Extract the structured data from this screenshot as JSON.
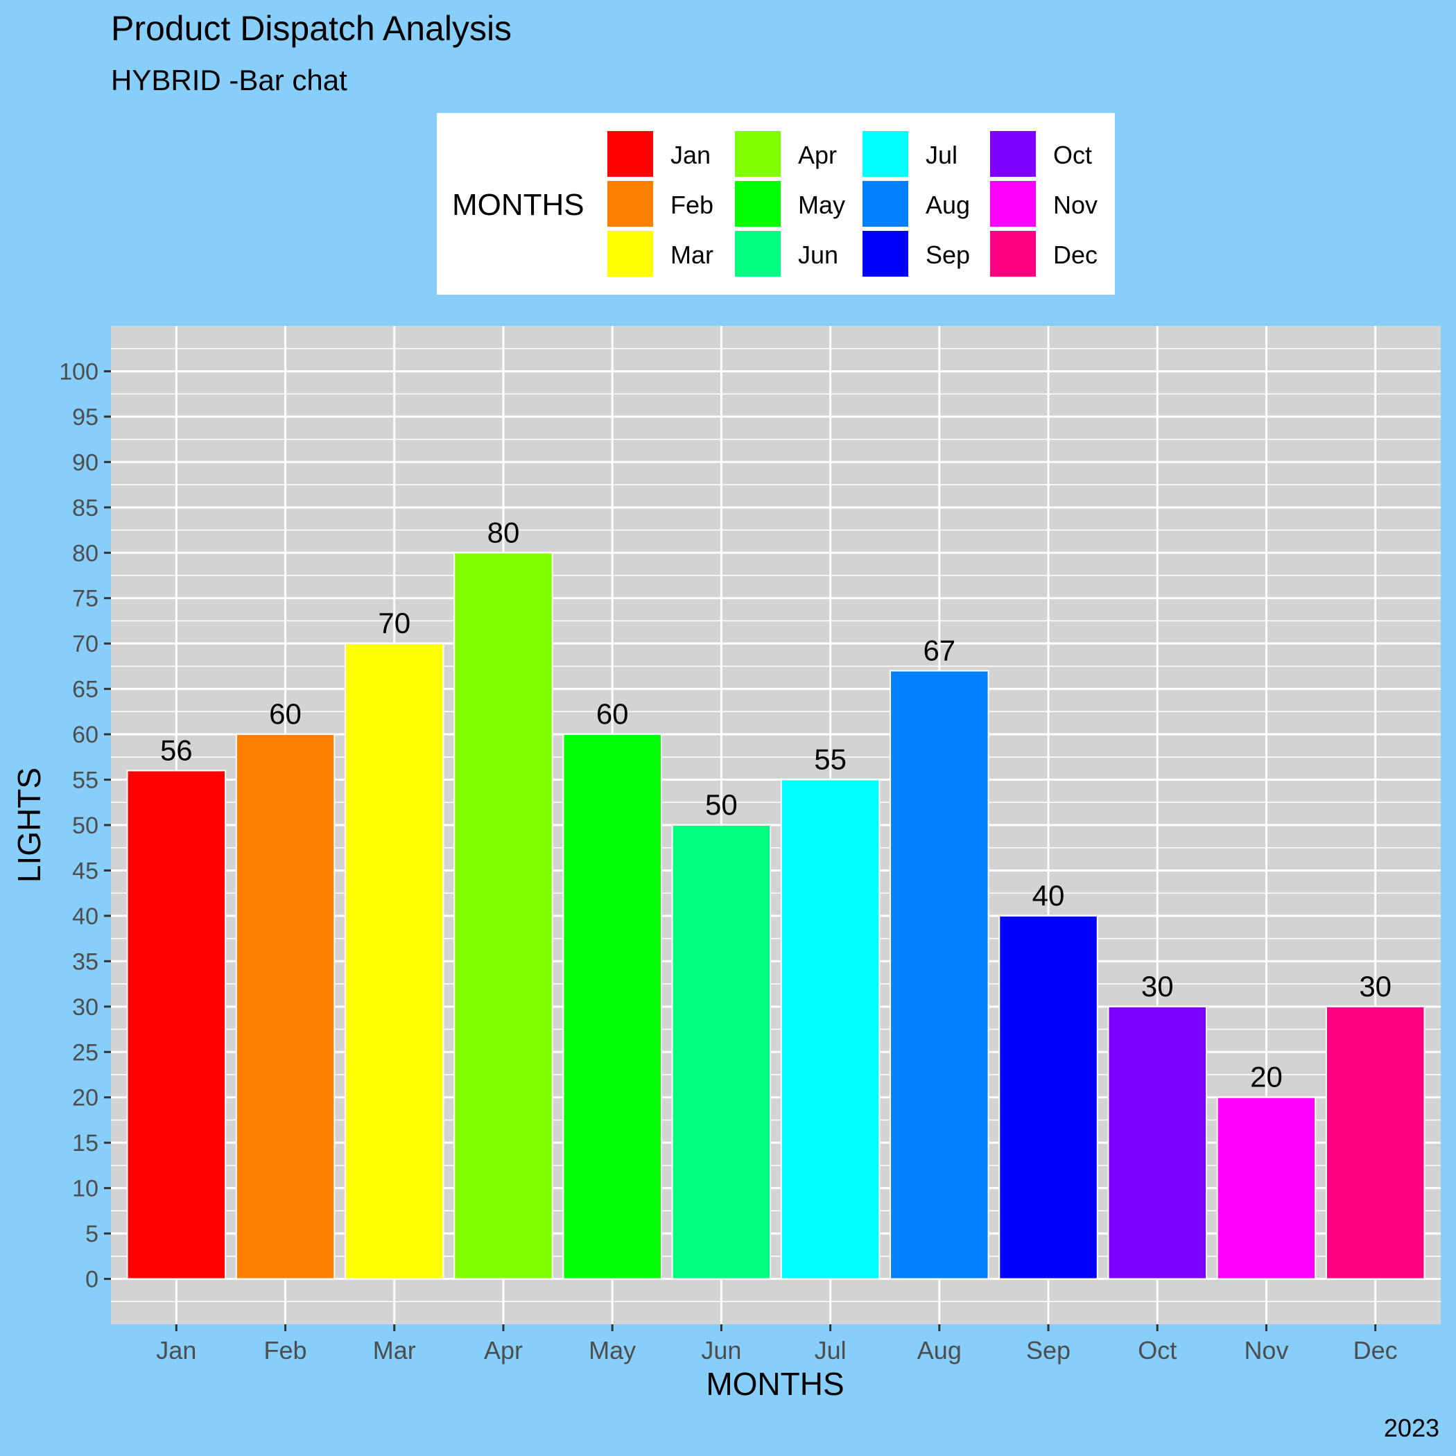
{
  "colors": {
    "plot_background": "#87CEFA",
    "panel_background": "#D3D3D3",
    "grid": "#FFFFFF",
    "legend_background": "#FFFFFF",
    "axis_text": "#4D4D4D"
  },
  "chart_data": {
    "type": "bar",
    "title": "Product Dispatch Analysis",
    "subtitle": "HYBRID -Bar chat",
    "caption": "2023",
    "xlabel": "MONTHS",
    "ylabel": "LIGHTS",
    "categories": [
      "Jan",
      "Feb",
      "Mar",
      "Apr",
      "May",
      "Jun",
      "Jul",
      "Aug",
      "Sep",
      "Oct",
      "Nov",
      "Dec"
    ],
    "values": [
      56,
      60,
      70,
      80,
      60,
      50,
      55,
      67,
      40,
      30,
      20,
      30
    ],
    "bar_colors": [
      "#FF0000",
      "#FF8000",
      "#FFFF00",
      "#80FF00",
      "#00FF00",
      "#00FF80",
      "#00FFFF",
      "#0080FF",
      "#0000FF",
      "#8000FF",
      "#FF00FF",
      "#FF0080"
    ],
    "ylim": [
      -5,
      105
    ],
    "yticks": [
      0,
      5,
      10,
      15,
      20,
      25,
      30,
      35,
      40,
      45,
      50,
      55,
      60,
      65,
      70,
      75,
      80,
      85,
      90,
      95,
      100
    ],
    "grid": true,
    "legend": {
      "title": "MONTHS",
      "placement": "top",
      "entries": [
        "Jan",
        "Feb",
        "Mar",
        "Apr",
        "May",
        "Jun",
        "Jul",
        "Aug",
        "Sep",
        "Oct",
        "Nov",
        "Dec"
      ]
    }
  }
}
